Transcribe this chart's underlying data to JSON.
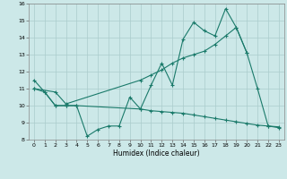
{
  "line1_x": [
    0,
    1,
    2,
    3,
    4,
    5,
    6,
    7,
    8,
    9,
    10,
    11,
    12,
    13,
    14,
    15,
    16,
    17,
    18,
    19,
    20,
    21,
    22,
    23
  ],
  "line1_y": [
    11.5,
    10.8,
    10.0,
    10.0,
    10.0,
    8.2,
    8.6,
    8.8,
    8.8,
    10.5,
    9.8,
    11.2,
    12.5,
    11.2,
    13.9,
    14.9,
    14.4,
    14.1,
    15.7,
    14.6,
    13.1,
    11.0,
    8.8,
    8.7
  ],
  "line2_x": [
    0,
    2,
    3,
    10,
    11,
    12,
    13,
    14,
    15,
    16,
    17,
    18,
    19,
    20
  ],
  "line2_y": [
    11.0,
    10.8,
    10.1,
    11.5,
    11.8,
    12.1,
    12.5,
    12.8,
    13.0,
    13.2,
    13.6,
    14.1,
    14.6,
    13.1
  ],
  "line3_x": [
    0,
    1,
    2,
    3,
    4,
    10,
    11,
    12,
    13,
    14,
    15,
    16,
    17,
    18,
    19,
    20,
    21,
    22,
    23
  ],
  "line3_y": [
    11.0,
    10.8,
    10.0,
    10.0,
    10.0,
    9.8,
    9.7,
    9.65,
    9.6,
    9.55,
    9.45,
    9.35,
    9.25,
    9.15,
    9.05,
    8.95,
    8.85,
    8.8,
    8.75
  ],
  "color": "#1a7a6a",
  "bg_color": "#cce8e8",
  "grid_color": "#aacccc",
  "xlabel": "Humidex (Indice chaleur)",
  "ylim": [
    8,
    16
  ],
  "xlim": [
    -0.5,
    23.5
  ],
  "yticks": [
    8,
    9,
    10,
    11,
    12,
    13,
    14,
    15,
    16
  ],
  "xticks": [
    0,
    1,
    2,
    3,
    4,
    5,
    6,
    7,
    8,
    9,
    10,
    11,
    12,
    13,
    14,
    15,
    16,
    17,
    18,
    19,
    20,
    21,
    22,
    23
  ]
}
